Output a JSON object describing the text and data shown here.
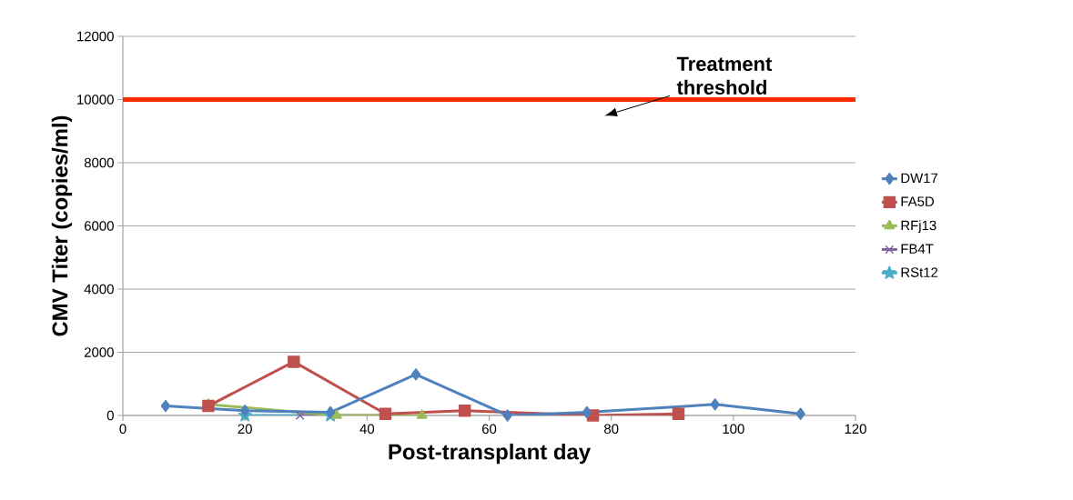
{
  "chart_data": {
    "type": "line",
    "xlabel": "Post-transplant day",
    "ylabel": "CMV Titer (copies/ml)",
    "xlim": [
      0,
      120
    ],
    "xticks": [
      0,
      20,
      40,
      60,
      80,
      100,
      120
    ],
    "ylim": [
      0,
      12000
    ],
    "yticks": [
      0,
      2000,
      4000,
      6000,
      8000,
      10000,
      12000
    ],
    "grid": "y",
    "legend": "right",
    "series": [
      {
        "name": "DW17",
        "color": "#4f81bd",
        "marker": "diamond",
        "x": [
          7,
          20,
          34,
          48,
          63,
          76,
          97,
          111
        ],
        "values": [
          300,
          150,
          100,
          1300,
          0,
          100,
          350,
          50
        ]
      },
      {
        "name": "FA5D",
        "color": "#c0504d",
        "marker": "square",
        "x": [
          14,
          28,
          43,
          56,
          77,
          91
        ],
        "values": [
          300,
          1700,
          50,
          150,
          0,
          50
        ]
      },
      {
        "name": "RFj13",
        "color": "#9bbb59",
        "marker": "triangle",
        "x": [
          14,
          35,
          49
        ],
        "values": [
          350,
          0,
          0
        ]
      },
      {
        "name": "FB4T",
        "color": "#8064a2",
        "marker": "cross",
        "x": [
          29,
          43
        ],
        "values": [
          0,
          0
        ]
      },
      {
        "name": "RSt12",
        "color": "#4bacc6",
        "marker": "star",
        "x": [
          20,
          34
        ],
        "values": [
          0,
          0
        ]
      }
    ],
    "ref_lines": [
      {
        "axis": "y",
        "value": 10000,
        "label": "Treatment threshold",
        "color": "#ff2a00"
      }
    ]
  }
}
